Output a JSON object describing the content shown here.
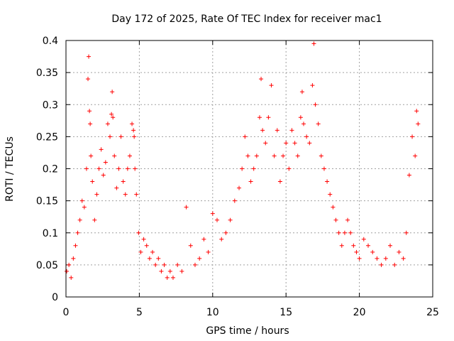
{
  "chart_data": {
    "type": "scatter",
    "title": "Day 172 of 2025, Rate Of TEC Index for receiver mac1",
    "xlabel": "GPS time / hours",
    "ylabel": "ROTI / TECUs",
    "xlim": [
      0,
      25
    ],
    "ylim": [
      0,
      0.4
    ],
    "xticks": [
      "0",
      "5",
      "10",
      "15",
      "20",
      "25"
    ],
    "yticks": [
      "0",
      "0.05",
      "0.1",
      "0.15",
      "0.2",
      "0.25",
      "0.3",
      "0.35",
      "0.4"
    ],
    "grid": true,
    "marker": "plus",
    "color": "#ff0000",
    "series": [
      {
        "x": [
          0.05,
          0.2,
          0.35,
          0.5,
          0.65,
          0.8,
          0.95,
          1.1,
          1.25,
          1.4,
          1.5,
          1.55,
          1.6,
          1.65,
          1.7,
          1.8,
          1.95,
          2.1,
          2.25,
          2.4,
          2.55,
          2.7,
          2.85,
          3.0,
          3.1,
          3.15,
          3.2,
          3.3,
          3.45,
          3.6,
          3.75,
          3.9,
          4.05,
          4.2,
          4.35,
          4.5,
          4.6,
          4.65,
          4.7,
          4.8,
          4.95,
          5.1,
          5.3,
          5.5,
          5.7,
          5.9,
          6.1,
          6.3,
          6.5,
          6.7,
          6.9,
          7.1,
          7.3,
          7.6,
          7.9,
          8.2,
          8.5,
          8.8,
          9.1,
          9.4,
          9.7,
          10.0,
          10.3,
          10.6,
          10.9,
          11.2,
          11.5,
          11.8,
          12.0,
          12.2,
          12.4,
          12.6,
          12.8,
          13.0,
          13.2,
          13.3,
          13.4,
          13.6,
          13.8,
          14.0,
          14.2,
          14.4,
          14.6,
          14.8,
          15.0,
          15.2,
          15.4,
          15.6,
          15.8,
          16.0,
          16.1,
          16.2,
          16.4,
          16.6,
          16.8,
          16.9,
          17.0,
          17.2,
          17.4,
          17.6,
          17.8,
          18.0,
          18.2,
          18.4,
          18.6,
          18.8,
          19.0,
          19.2,
          19.4,
          19.6,
          19.8,
          20.0,
          20.3,
          20.6,
          20.9,
          21.2,
          21.5,
          21.8,
          22.1,
          22.4,
          22.7,
          23.0,
          23.2,
          23.4,
          23.6,
          23.8,
          23.9,
          24.0
        ],
        "y": [
          0.04,
          0.05,
          0.03,
          0.06,
          0.08,
          0.1,
          0.12,
          0.15,
          0.14,
          0.2,
          0.34,
          0.375,
          0.29,
          0.27,
          0.22,
          0.18,
          0.12,
          0.16,
          0.2,
          0.23,
          0.19,
          0.21,
          0.27,
          0.25,
          0.285,
          0.32,
          0.28,
          0.22,
          0.17,
          0.2,
          0.25,
          0.18,
          0.16,
          0.2,
          0.22,
          0.27,
          0.26,
          0.25,
          0.2,
          0.16,
          0.1,
          0.07,
          0.09,
          0.08,
          0.06,
          0.07,
          0.05,
          0.06,
          0.04,
          0.05,
          0.03,
          0.04,
          0.03,
          0.05,
          0.04,
          0.14,
          0.08,
          0.05,
          0.06,
          0.09,
          0.07,
          0.13,
          0.12,
          0.09,
          0.1,
          0.12,
          0.15,
          0.17,
          0.2,
          0.25,
          0.22,
          0.18,
          0.2,
          0.22,
          0.28,
          0.34,
          0.26,
          0.24,
          0.28,
          0.33,
          0.22,
          0.26,
          0.18,
          0.22,
          0.24,
          0.2,
          0.26,
          0.24,
          0.22,
          0.28,
          0.32,
          0.27,
          0.25,
          0.24,
          0.33,
          0.395,
          0.3,
          0.27,
          0.22,
          0.2,
          0.18,
          0.16,
          0.14,
          0.12,
          0.1,
          0.08,
          0.1,
          0.12,
          0.1,
          0.08,
          0.07,
          0.06,
          0.09,
          0.08,
          0.07,
          0.06,
          0.05,
          0.06,
          0.08,
          0.05,
          0.07,
          0.06,
          0.1,
          0.19,
          0.25,
          0.22,
          0.29,
          0.27
        ]
      }
    ]
  }
}
